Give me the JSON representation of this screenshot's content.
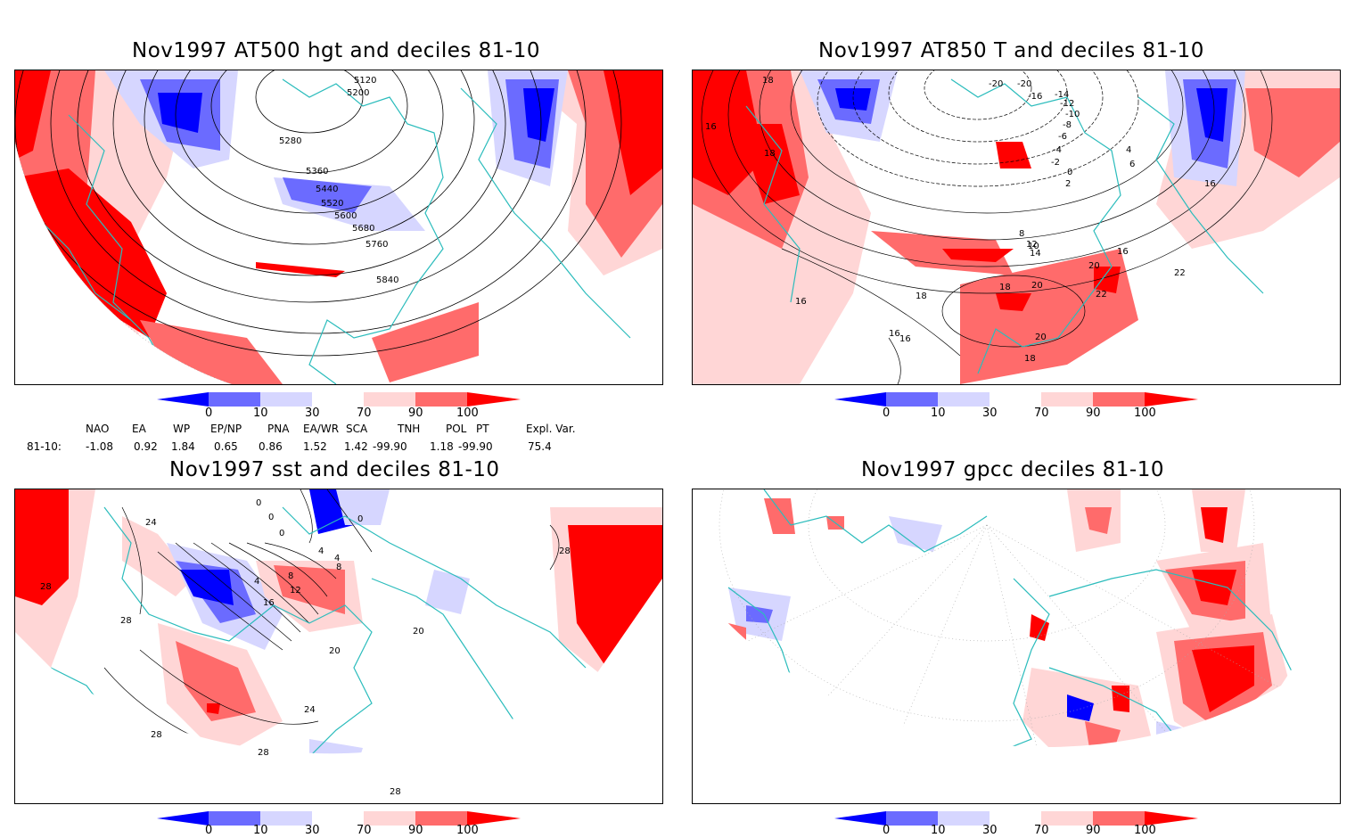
{
  "panels": [
    {
      "title": "Nov1997 AT500 hgt and deciles 81-10",
      "contour_labels": [
        "5120",
        "5200",
        "5280",
        "5360",
        "5440",
        "5520",
        "5600",
        "5680",
        "5760",
        "5840"
      ]
    },
    {
      "title": "Nov1997 AT850 T and deciles 81-10",
      "contour_labels": [
        "18",
        "16",
        "18",
        "-20",
        "-20",
        "-16",
        "-14",
        "-12",
        "-10",
        "-8",
        "-6",
        "-4",
        "-2",
        "0",
        "2",
        "4",
        "6",
        "8",
        "10",
        "12",
        "14",
        "16",
        "18",
        "20",
        "22",
        "22",
        "20",
        "18",
        "16",
        "16",
        "16",
        "16",
        "20",
        "18"
      ]
    },
    {
      "title": "Nov1997 sst and deciles 81-10",
      "contour_labels": [
        "24",
        "28",
        "28",
        "28",
        "28",
        "28",
        "0",
        "0",
        "0",
        "0",
        "4",
        "4",
        "4",
        "8",
        "8",
        "12",
        "16",
        "20",
        "20",
        "24",
        "28"
      ]
    },
    {
      "title": "Nov1997 gpcc deciles 81-10",
      "contour_labels": []
    }
  ],
  "colorbar": {
    "ticks": [
      "0",
      "10",
      "30",
      "70",
      "90",
      "100"
    ],
    "colors": [
      "#0000ff",
      "#6b6bff",
      "#d6d6ff",
      "#ffffff",
      "#ffd6d6",
      "#ff6b6b",
      "#ff0000"
    ]
  },
  "indices": {
    "headers": [
      "NAO",
      "EA",
      "WP",
      "EP/NP",
      "PNA",
      "EA/WR",
      "SCA",
      "TNH",
      "POL",
      "PT",
      "Expl. Var."
    ],
    "row_label": "81-10:",
    "values": [
      "-1.08",
      "0.92",
      "1.84",
      "0.65",
      "0.86",
      "1.52",
      "1.42",
      "-99.90",
      "1.18",
      "-99.90",
      "75.4"
    ]
  },
  "colors": {
    "coast": "#2bbcbc",
    "strong_red": "#ff0000",
    "mid_red": "#ff6b6b",
    "light_red": "#ffd6d6",
    "strong_blue": "#0000ff",
    "mid_blue": "#6b6bff",
    "light_blue": "#d6d6ff"
  }
}
